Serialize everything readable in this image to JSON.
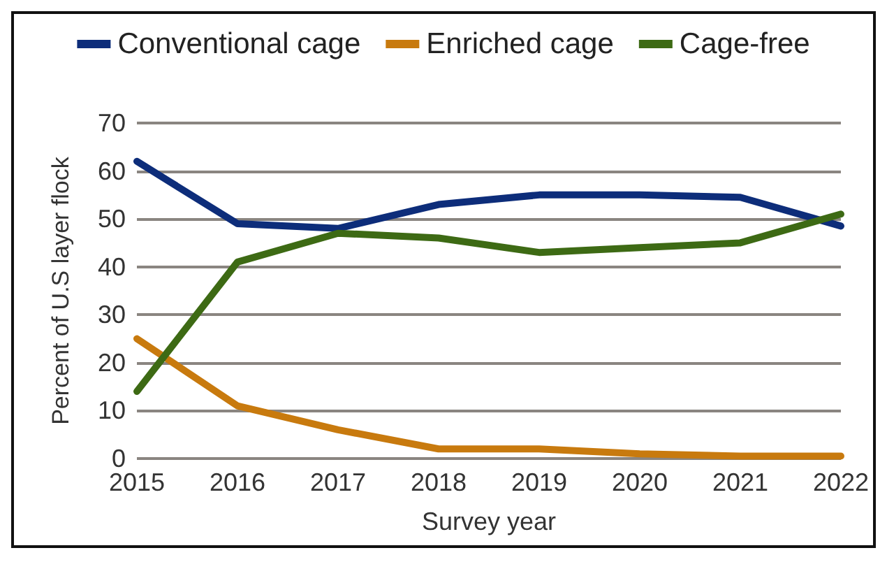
{
  "chart_data": {
    "type": "line",
    "xlabel": "Survey year",
    "ylabel": "Percent of U.S layer flock",
    "categories": [
      "2015",
      "2016",
      "2017",
      "2018",
      "2019",
      "2020",
      "2021",
      "2022"
    ],
    "series": [
      {
        "name": "Conventional cage",
        "color": "#0d2d7a",
        "values": [
          62,
          49,
          48,
          53,
          55,
          55,
          54.5,
          48.5
        ]
      },
      {
        "name": "Enriched cage",
        "color": "#c87a0e",
        "values": [
          25,
          11,
          6,
          2,
          2,
          1,
          0.5,
          0.5
        ]
      },
      {
        "name": "Cage-free",
        "color": "#3d6a14",
        "values": [
          14,
          41,
          47,
          46,
          43,
          44,
          45,
          51
        ]
      }
    ],
    "ylim": [
      0,
      70
    ],
    "yticks": [
      0,
      10,
      20,
      30,
      40,
      50,
      60,
      70
    ],
    "grid": "y",
    "legend": "top",
    "marker": "none",
    "line_style": "solid"
  }
}
